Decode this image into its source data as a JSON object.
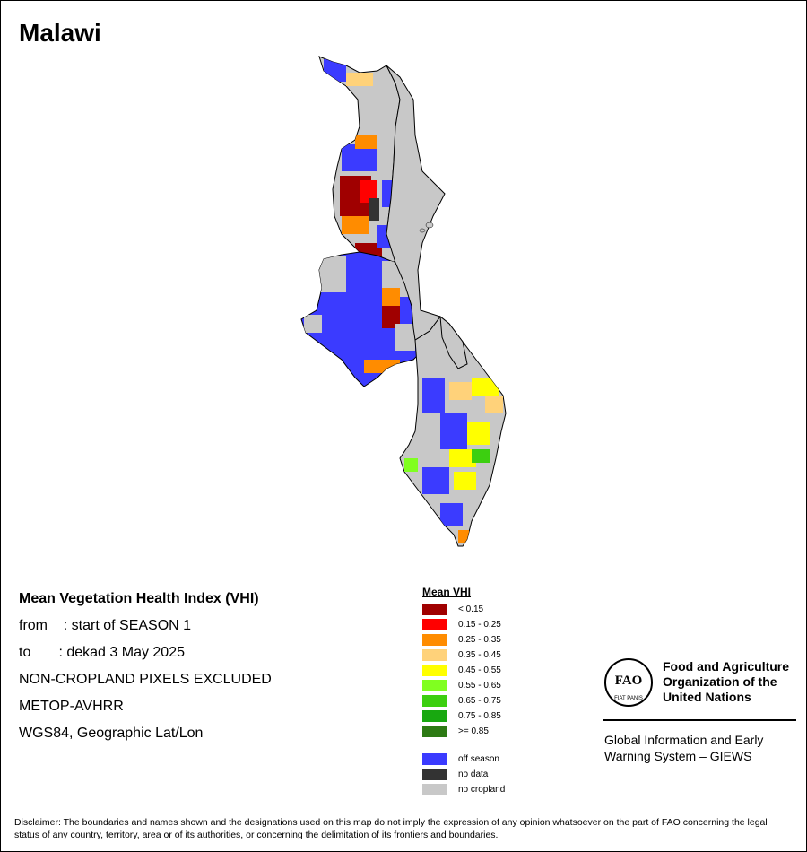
{
  "map_title": "Malawi",
  "info": {
    "heading": "Mean Vegetation Health Index (VHI)",
    "from_line": "from    : start of SEASON 1",
    "to_line": "to       : dekad 3 May 2025",
    "exclusion": "NON-CROPLAND PIXELS EXCLUDED",
    "sensor": "METOP-AVHRR",
    "projection": "WGS84, Geographic Lat/Lon"
  },
  "legend": {
    "title": "Mean VHI",
    "classes": [
      {
        "label": "< 0.15",
        "color": "#a00000"
      },
      {
        "label": "0.15 - 0.25",
        "color": "#ff0000"
      },
      {
        "label": "0.25 - 0.35",
        "color": "#ff8c00"
      },
      {
        "label": "0.35 - 0.45",
        "color": "#ffd27a"
      },
      {
        "label": "0.45 - 0.55",
        "color": "#ffff00"
      },
      {
        "label": "0.55 - 0.65",
        "color": "#80ff20"
      },
      {
        "label": "0.65 - 0.75",
        "color": "#3ccf10"
      },
      {
        "label": "0.75 - 0.85",
        "color": "#18a810"
      },
      {
        "label": ">= 0.85",
        "color": "#2d7a14"
      }
    ],
    "special": [
      {
        "label": "off season",
        "color": "#3b3bff"
      },
      {
        "label": "no data",
        "color": "#333333"
      },
      {
        "label": "no cropland",
        "color": "#c8c8c8"
      }
    ]
  },
  "fao": {
    "org_name": "Food and Agriculture Organization of the United Nations",
    "logo_text": "FAO",
    "logo_motto": "FIAT PANIS",
    "system_name": "Global Information and Early Warning System – GIEWS"
  },
  "disclaimer": "Disclaimer: The boundaries and names shown and the designations used on this map do not imply the expression of any opinion whatsoever on the part of FAO concerning the legal status of any country, territory, area or of its authorities, or concerning the delimitation of its frontiers and boundaries.",
  "colors": {
    "lake": "#ffffff",
    "border": "#000000"
  }
}
